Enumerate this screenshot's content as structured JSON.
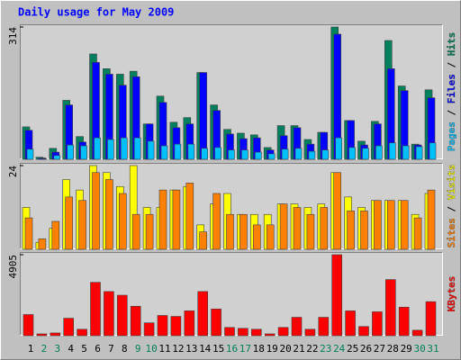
{
  "chart_data": [
    {
      "type": "bar",
      "title": "Daily usage for May 2009",
      "legend_separator": " / ",
      "ylim": [
        0,
        314
      ],
      "yticks": [
        314
      ],
      "series": [
        {
          "name": "Hits",
          "color": "#00805c",
          "values": [
            77,
            5,
            26,
            140,
            54,
            250,
            215,
            202,
            209,
            84,
            150,
            88,
            99,
            206,
            129,
            71,
            62,
            58,
            28,
            80,
            80,
            47,
            64,
            314,
            92,
            43,
            90,
            282,
            174,
            36,
            165
          ]
        },
        {
          "name": "Files",
          "color": "#0000ff",
          "values": [
            69,
            3,
            17,
            129,
            41,
            230,
            202,
            176,
            196,
            84,
            135,
            75,
            84,
            206,
            116,
            60,
            49,
            51,
            22,
            56,
            75,
            36,
            64,
            297,
            92,
            34,
            84,
            215,
            163,
            34,
            146
          ]
        },
        {
          "name": "Pages",
          "color": "#00c0ff",
          "values": [
            24,
            1,
            9,
            34,
            32,
            51,
            47,
            51,
            51,
            43,
            32,
            36,
            36,
            26,
            28,
            22,
            22,
            17,
            13,
            24,
            26,
            19,
            22,
            51,
            28,
            26,
            32,
            39,
            32,
            30,
            39
          ]
        }
      ]
    },
    {
      "type": "bar",
      "legend_separator": " / ",
      "ylim": [
        0,
        24
      ],
      "yticks": [
        24
      ],
      "series": [
        {
          "name": "Visits",
          "color": "#ffff00",
          "values": [
            12,
            2,
            6,
            20,
            17,
            24,
            22,
            18,
            24,
            12,
            12,
            17,
            18,
            7,
            13,
            16,
            10,
            10,
            10,
            13,
            13,
            12,
            13,
            22,
            15,
            12,
            14,
            14,
            14,
            10,
            16
          ]
        },
        {
          "name": "Sites",
          "color": "#ff8000",
          "values": [
            9,
            3,
            8,
            15,
            14,
            22,
            20,
            16,
            10,
            10,
            17,
            17,
            19,
            5,
            16,
            10,
            10,
            7,
            7,
            13,
            12,
            10,
            12,
            22,
            11,
            11,
            14,
            14,
            14,
            9,
            17
          ]
        }
      ]
    },
    {
      "type": "bar",
      "ylim": [
        0,
        4905
      ],
      "yticks": [
        4905
      ],
      "categories": [
        "1",
        "2",
        "3",
        "4",
        "5",
        "6",
        "7",
        "8",
        "9",
        "10",
        "11",
        "12",
        "13",
        "14",
        "15",
        "16",
        "17",
        "18",
        "19",
        "20",
        "21",
        "22",
        "23",
        "24",
        "25",
        "26",
        "27",
        "28",
        "29",
        "30",
        "31"
      ],
      "category_colors": [
        "#000000",
        "#00805c",
        "#00805c",
        "#000000",
        "#000000",
        "#000000",
        "#000000",
        "#000000",
        "#00805c",
        "#00805c",
        "#000000",
        "#000000",
        "#000000",
        "#000000",
        "#000000",
        "#00805c",
        "#00805c",
        "#000000",
        "#000000",
        "#000000",
        "#000000",
        "#000000",
        "#00805c",
        "#00805c",
        "#000000",
        "#000000",
        "#000000",
        "#000000",
        "#000000",
        "#00805c",
        "#00805c"
      ],
      "series": [
        {
          "name": "KBytes",
          "color": "#ff0000",
          "values": [
            1282,
            111,
            167,
            1059,
            390,
            3233,
            2675,
            2452,
            1784,
            780,
            1226,
            1170,
            1505,
            2675,
            1617,
            501,
            446,
            390,
            111,
            501,
            1115,
            390,
            1115,
            4905,
            1505,
            557,
            1449,
            3400,
            1728,
            334,
            2062
          ]
        }
      ]
    }
  ]
}
